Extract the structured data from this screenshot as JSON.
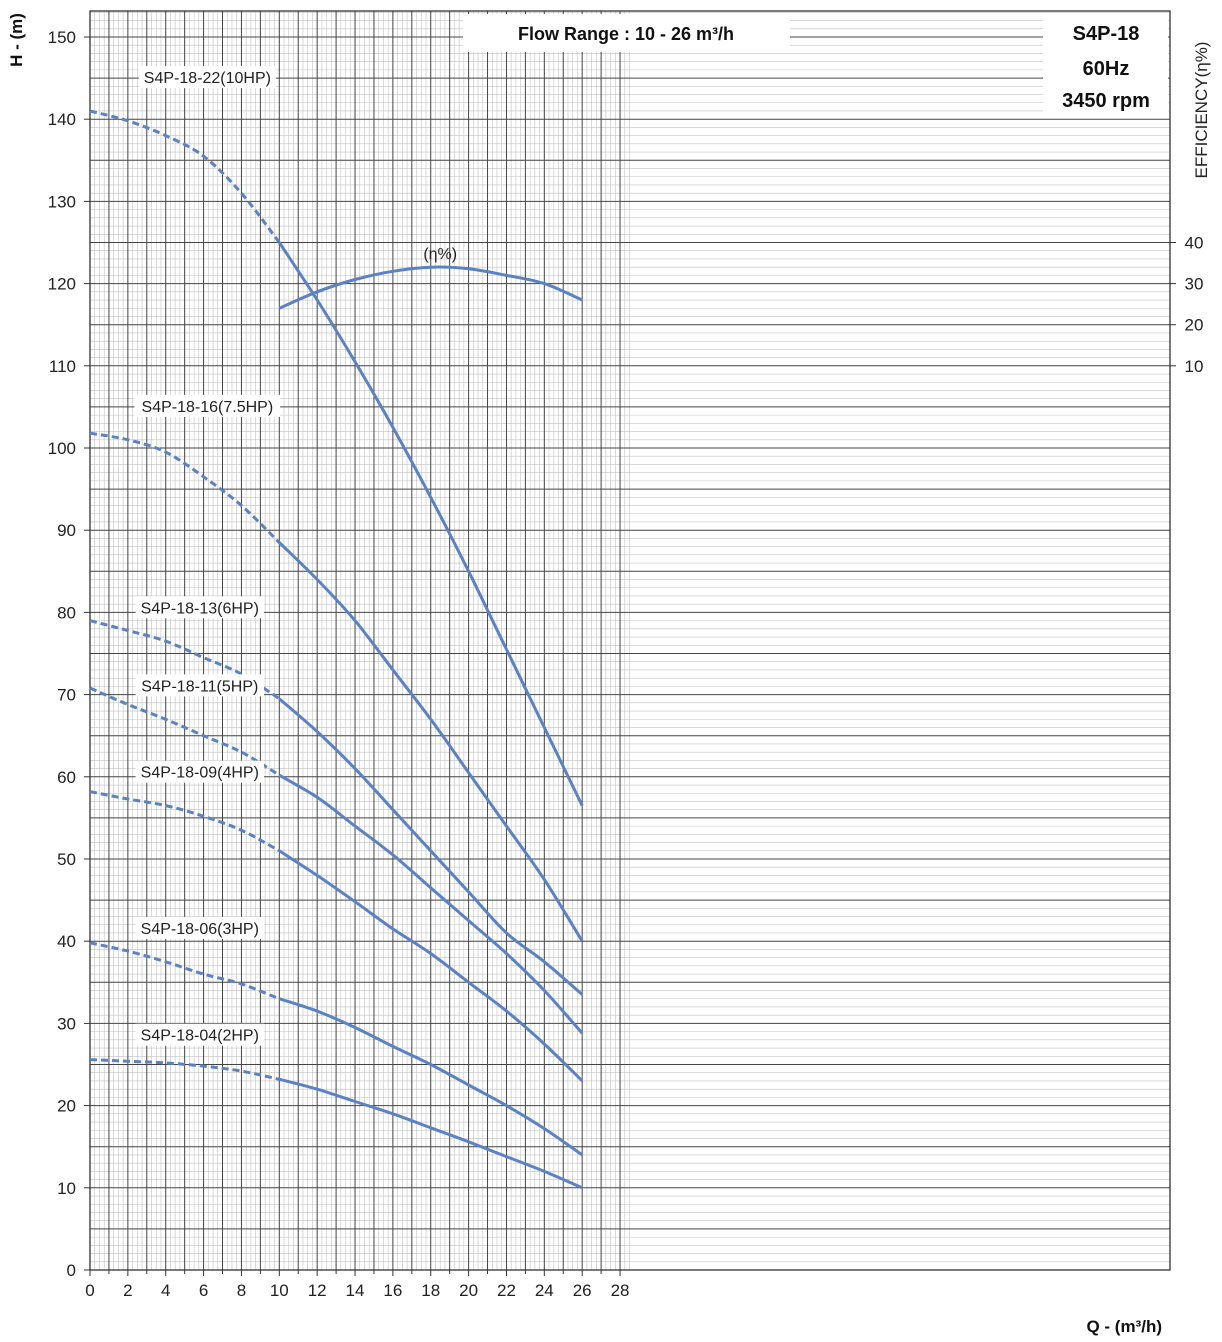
{
  "chart_data": {
    "type": "line",
    "title": "Flow Range : 10 - 26 m³/h",
    "model_box": {
      "model": "S4P-18",
      "frequency": "60Hz",
      "speed": "3450 rpm"
    },
    "xlabel": "Q - (m³/h)",
    "ylabel": "H - (m)",
    "y2label": "EFFICIENCY(η%)",
    "xlim": [
      0,
      28.5
    ],
    "ylim": [
      0,
      153
    ],
    "x_ticks": [
      "0",
      "2",
      "4",
      "6",
      "8",
      "10",
      "12",
      "14",
      "16",
      "18",
      "20",
      "22",
      "24",
      "26",
      "28"
    ],
    "y_ticks": [
      "0",
      "10",
      "20",
      "30",
      "40",
      "50",
      "60",
      "70",
      "80",
      "90",
      "100",
      "110",
      "120",
      "130",
      "140",
      "150"
    ],
    "y2_ticks": [
      {
        "label": "10",
        "h": 110
      },
      {
        "label": "20",
        "h": 115
      },
      {
        "label": "30",
        "h": 120
      },
      {
        "label": "40",
        "h": 125
      }
    ],
    "grid": true,
    "line_color": "#5b82c4",
    "series": [
      {
        "name": "S4P-18-22(10HP)",
        "label_pos": [
          6.2,
          145
        ],
        "dashed": {
          "x": [
            0,
            2,
            4,
            6,
            8,
            10
          ],
          "y": [
            141,
            139.8,
            138,
            135.5,
            131,
            125
          ]
        },
        "solid": {
          "x": [
            10,
            12,
            14,
            16,
            18,
            20,
            22,
            24,
            26
          ],
          "y": [
            125,
            118,
            110.5,
            102.5,
            94,
            85,
            75.5,
            66,
            56.5
          ]
        }
      },
      {
        "name": "S4P-18-16(7.5HP)",
        "label_pos": [
          6.2,
          105
        ],
        "dashed": {
          "x": [
            0,
            2,
            4,
            6,
            8,
            10
          ],
          "y": [
            101.8,
            101,
            99.5,
            96.5,
            93,
            88.5
          ]
        },
        "solid": {
          "x": [
            10,
            12,
            14,
            16,
            18,
            20,
            22,
            24,
            26
          ],
          "y": [
            88.5,
            84,
            79,
            73,
            67,
            60.5,
            54,
            47.5,
            40
          ]
        }
      },
      {
        "name": "S4P-18-13(6HP)",
        "label_pos": [
          5.8,
          80.5
        ],
        "dashed": {
          "x": [
            0,
            2,
            4,
            6,
            8,
            10
          ],
          "y": [
            79,
            77.8,
            76.5,
            74.5,
            72.5,
            69.5
          ]
        },
        "solid": {
          "x": [
            10,
            12,
            14,
            16,
            18,
            20,
            22,
            24,
            26
          ],
          "y": [
            69.5,
            65.5,
            61,
            56,
            51,
            46,
            41,
            37.5,
            33.5
          ]
        }
      },
      {
        "name": "S4P-18-11(5HP)",
        "label_pos": [
          5.8,
          71
        ],
        "dashed": {
          "x": [
            0,
            2,
            4,
            6,
            8,
            10
          ],
          "y": [
            70.8,
            68.8,
            67,
            65,
            63,
            60.2
          ]
        },
        "solid": {
          "x": [
            10,
            12,
            14,
            16,
            18,
            20,
            22,
            24,
            26
          ],
          "y": [
            60.2,
            57.5,
            54,
            50.5,
            46.5,
            42.5,
            38.5,
            34,
            28.8
          ]
        }
      },
      {
        "name": "S4P-18-09(4HP)",
        "label_pos": [
          5.8,
          60.5
        ],
        "dashed": {
          "x": [
            0,
            2,
            4,
            6,
            8,
            10
          ],
          "y": [
            58.2,
            57.3,
            56.5,
            55.2,
            53.5,
            51
          ]
        },
        "solid": {
          "x": [
            10,
            12,
            14,
            16,
            18,
            20,
            22,
            24,
            26
          ],
          "y": [
            51,
            48,
            44.8,
            41.5,
            38.5,
            35,
            31.5,
            27.5,
            23
          ]
        }
      },
      {
        "name": "S4P-18-06(3HP)",
        "label_pos": [
          5.8,
          41.5
        ],
        "dashed": {
          "x": [
            0,
            2,
            4,
            6,
            8,
            10
          ],
          "y": [
            39.8,
            38.8,
            37.5,
            36,
            34.8,
            33
          ]
        },
        "solid": {
          "x": [
            10,
            12,
            14,
            16,
            18,
            20,
            22,
            24,
            26
          ],
          "y": [
            33,
            31.5,
            29.5,
            27.2,
            25,
            22.5,
            20,
            17.2,
            14
          ]
        }
      },
      {
        "name": "S4P-18-04(2HP)",
        "label_pos": [
          5.8,
          28.5
        ],
        "dashed": {
          "x": [
            0,
            2,
            4,
            6,
            8,
            10
          ],
          "y": [
            25.6,
            25.4,
            25.2,
            24.8,
            24.2,
            23.2
          ]
        },
        "solid": {
          "x": [
            10,
            12,
            14,
            16,
            18,
            20,
            22,
            24,
            26
          ],
          "y": [
            23.2,
            22,
            20.5,
            19,
            17.3,
            15.6,
            13.8,
            12,
            10
          ]
        }
      }
    ],
    "efficiency": {
      "name": "(η%)",
      "label_pos": [
        18.5,
        123
      ],
      "x": [
        10,
        12,
        14,
        16,
        18,
        20,
        22,
        24,
        26
      ],
      "y_on_h_axis": [
        117,
        119,
        120.5,
        121.5,
        122,
        121.8,
        121,
        120,
        118
      ]
    }
  }
}
